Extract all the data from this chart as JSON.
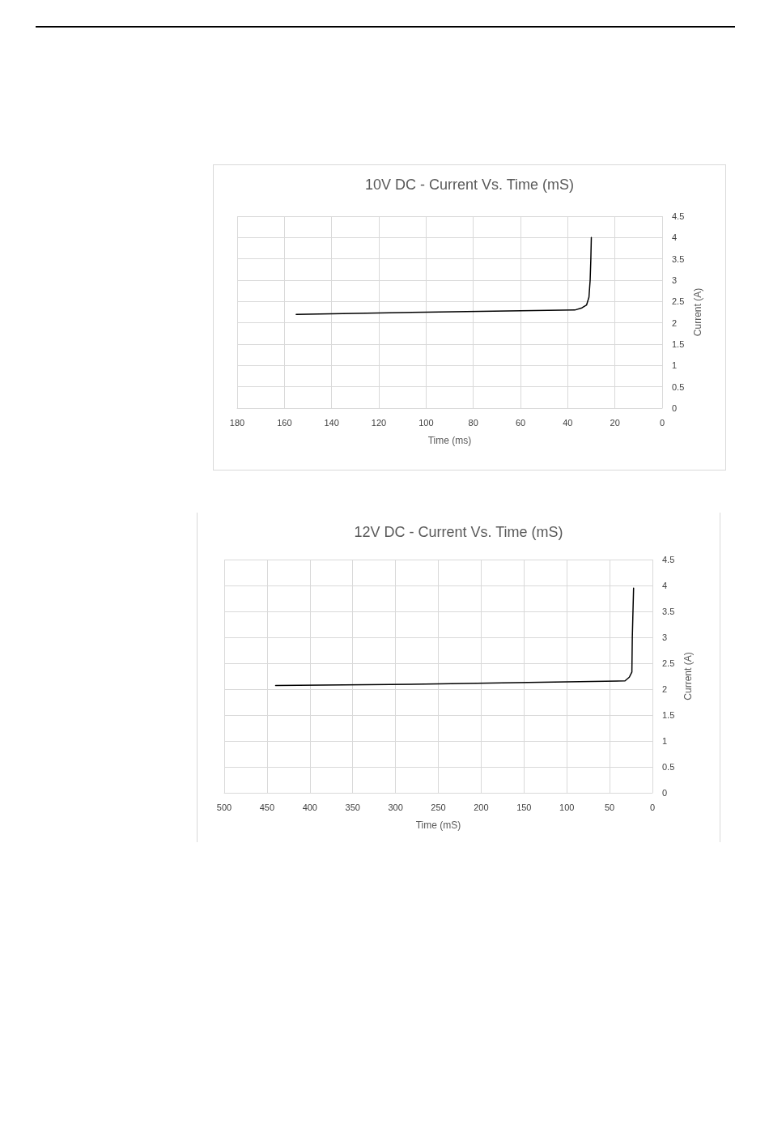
{
  "chart_data": [
    {
      "type": "line",
      "title": "10V DC - Current Vs. Time (mS)",
      "xlabel": "Time (ms)",
      "ylabel": "Current (A)",
      "series": [
        {
          "color": "#000000",
          "x": [
            155,
            100,
            37,
            34,
            32,
            31,
            30.5,
            30.2,
            30
          ],
          "values": [
            2.2,
            2.25,
            2.3,
            2.35,
            2.42,
            2.6,
            3.0,
            3.5,
            4.0
          ]
        }
      ],
      "xlim": [
        180,
        0
      ],
      "xticks": [
        180,
        160,
        140,
        120,
        100,
        80,
        60,
        40,
        20,
        0
      ],
      "ylim": [
        0,
        4.5
      ],
      "yticks": [
        0,
        0.5,
        1,
        1.5,
        2,
        2.5,
        3,
        3.5,
        4,
        4.5
      ],
      "grid": true,
      "marker": "none",
      "line_style": "solid"
    },
    {
      "type": "line",
      "title": "12V DC - Current Vs. Time (mS)",
      "xlabel": "Time (mS)",
      "ylabel": "Current (A)",
      "series": [
        {
          "color": "#000000",
          "x": [
            440,
            250,
            100,
            32,
            27,
            24,
            23.5,
            22
          ],
          "values": [
            2.07,
            2.1,
            2.14,
            2.16,
            2.23,
            2.33,
            3.0,
            3.95
          ]
        }
      ],
      "xlim": [
        500,
        0
      ],
      "xticks": [
        500,
        450,
        400,
        350,
        300,
        250,
        200,
        150,
        100,
        50,
        0
      ],
      "ylim": [
        0,
        4.5
      ],
      "yticks": [
        0,
        0.5,
        1,
        1.5,
        2,
        2.5,
        3,
        3.5,
        4,
        4.5
      ],
      "grid": true,
      "marker": "none",
      "line_style": "solid"
    }
  ]
}
